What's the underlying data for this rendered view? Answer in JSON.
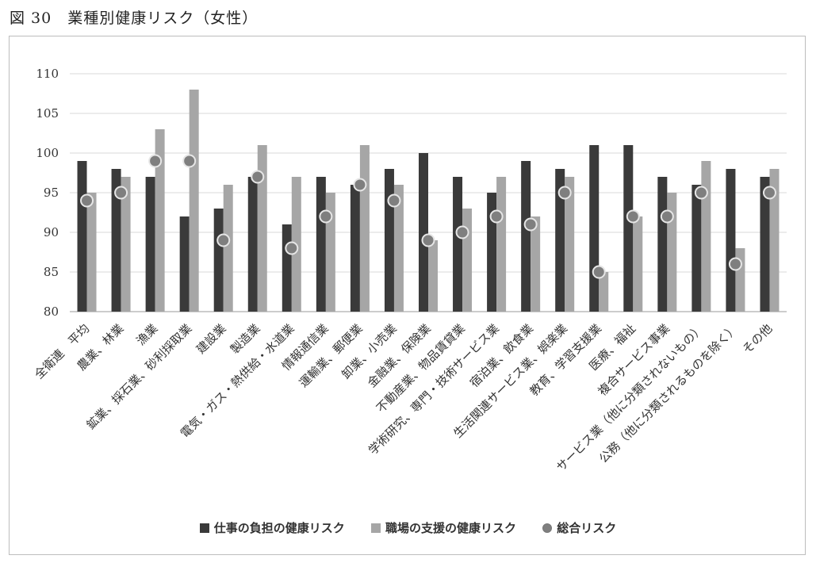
{
  "figure": {
    "title": "図 30　業種別健康リスク（女性）"
  },
  "chart_data": {
    "type": "bar",
    "ylim": [
      80,
      110
    ],
    "yticks": [
      80,
      85,
      90,
      95,
      100,
      105,
      110
    ],
    "grid": true,
    "legend_position": "bottom",
    "categories": [
      "全衛連　平均",
      "農業、林業",
      "漁業",
      "鉱業、採石業、砂利採取業",
      "建設業",
      "製造業",
      "電気・ガス・熱供給・水道業",
      "情報通信業",
      "運輸業、郵便業",
      "卸業、小売業",
      "金融業、保険業",
      "不動産業、物品賃貸業",
      "学術研究、専門・技術サービス業",
      "宿泊業、飲食業",
      "生活関連サービス業、娯楽業",
      "教育、学習支援業",
      "医療、福祉",
      "複合サービス事業",
      "サービス業（他に分類されないもの）",
      "公務（他に分類されるものを除く）",
      "その他"
    ],
    "series": [
      {
        "name": "仕事の負担の健康リスク",
        "mark": "bar",
        "color": "#3a3a3a",
        "values": [
          99,
          98,
          97,
          92,
          93,
          97,
          91,
          97,
          96,
          98,
          100,
          97,
          95,
          99,
          98,
          101,
          101,
          97,
          96,
          98,
          97
        ]
      },
      {
        "name": "職場の支援の健康リスク",
        "mark": "bar",
        "color": "#a6a6a6",
        "values": [
          95,
          97,
          103,
          108,
          96,
          101,
          97,
          95,
          101,
          96,
          89,
          93,
          97,
          92,
          97,
          85,
          92,
          95,
          99,
          88,
          98
        ]
      },
      {
        "name": "総合リスク",
        "mark": "point",
        "color": "#7f7f7f",
        "values": [
          94,
          95,
          99,
          99,
          89,
          97,
          88,
          92,
          96,
          94,
          89,
          90,
          92,
          91,
          95,
          85,
          92,
          92,
          95,
          86,
          95
        ]
      }
    ]
  }
}
